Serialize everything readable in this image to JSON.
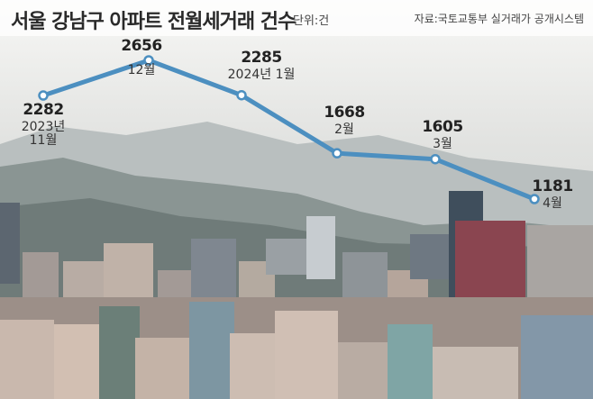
{
  "chart_data": {
    "type": "line",
    "title": "서울 강남구 아파트 전월세거래 건수",
    "unit": "단위:건",
    "source": "자료:국토교통부 실거래가 공개시스템",
    "categories": [
      "2023년 11월",
      "12월",
      "2024년 1월",
      "2월",
      "3월",
      "4월"
    ],
    "series": [
      {
        "color": "#4c8fc0",
        "values": [
          2282,
          2656,
          2285,
          1668,
          1605,
          1181
        ]
      }
    ]
  }
}
